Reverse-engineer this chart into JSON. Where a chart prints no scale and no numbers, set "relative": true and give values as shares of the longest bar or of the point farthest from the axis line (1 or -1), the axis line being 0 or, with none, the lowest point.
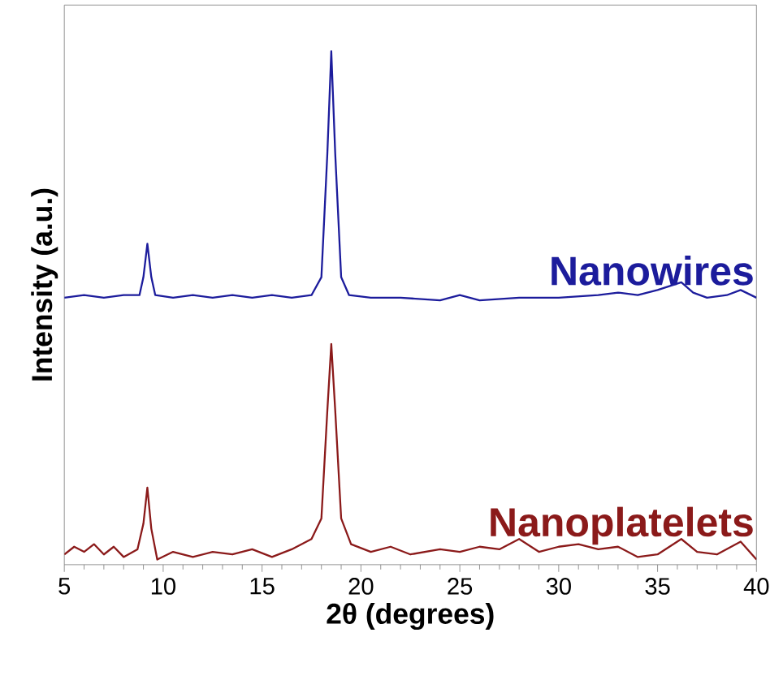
{
  "chart_data": {
    "type": "line",
    "xlabel": "2θ (degrees)",
    "ylabel": "Intensity (a.u.)",
    "relative": true,
    "legend": false,
    "xlim": [
      5,
      40
    ],
    "xticks": [
      5,
      10,
      15,
      20,
      25,
      30,
      35,
      40
    ],
    "series": [
      {
        "name": "Nanowires",
        "color": "#1c1c9c",
        "x": [
          5,
          6,
          7,
          8,
          8.8,
          9.0,
          9.2,
          9.4,
          9.6,
          10.5,
          11.5,
          12.5,
          13.5,
          14.5,
          15.5,
          16.5,
          17.5,
          18.0,
          18.3,
          18.5,
          18.7,
          19.0,
          19.4,
          20.5,
          22,
          24,
          25,
          26,
          28,
          30,
          32,
          33,
          34,
          35,
          36.2,
          36.8,
          37.5,
          38.5,
          39.2,
          40
        ],
        "values": [
          0.52,
          0.525,
          0.52,
          0.525,
          0.525,
          0.56,
          0.625,
          0.56,
          0.525,
          0.52,
          0.525,
          0.52,
          0.525,
          0.52,
          0.525,
          0.52,
          0.525,
          0.56,
          0.8,
          1.0,
          0.8,
          0.56,
          0.525,
          0.52,
          0.52,
          0.515,
          0.525,
          0.515,
          0.52,
          0.52,
          0.525,
          0.53,
          0.525,
          0.535,
          0.55,
          0.53,
          0.52,
          0.525,
          0.535,
          0.52
        ]
      },
      {
        "name": "Nanoplatelets",
        "color": "#8b1a1a",
        "x": [
          5,
          5.5,
          6,
          6.5,
          7,
          7.5,
          8,
          8.7,
          9.0,
          9.2,
          9.4,
          9.7,
          10.5,
          11.5,
          12.5,
          13.5,
          14.5,
          15.5,
          16.5,
          17.5,
          18.0,
          18.3,
          18.5,
          18.7,
          19.0,
          19.5,
          20.5,
          21.5,
          22.5,
          24,
          25,
          26,
          27,
          28,
          29,
          30,
          31,
          32,
          33,
          34,
          35,
          36.2,
          37,
          38,
          39.2,
          40
        ],
        "values": [
          0.02,
          0.035,
          0.025,
          0.04,
          0.02,
          0.035,
          0.015,
          0.03,
          0.08,
          0.15,
          0.07,
          0.01,
          0.025,
          0.015,
          0.025,
          0.02,
          0.03,
          0.015,
          0.03,
          0.05,
          0.09,
          0.3,
          0.43,
          0.3,
          0.09,
          0.04,
          0.025,
          0.035,
          0.02,
          0.03,
          0.025,
          0.035,
          0.03,
          0.05,
          0.025,
          0.035,
          0.04,
          0.03,
          0.035,
          0.015,
          0.02,
          0.05,
          0.025,
          0.02,
          0.045,
          0.01
        ]
      }
    ]
  }
}
